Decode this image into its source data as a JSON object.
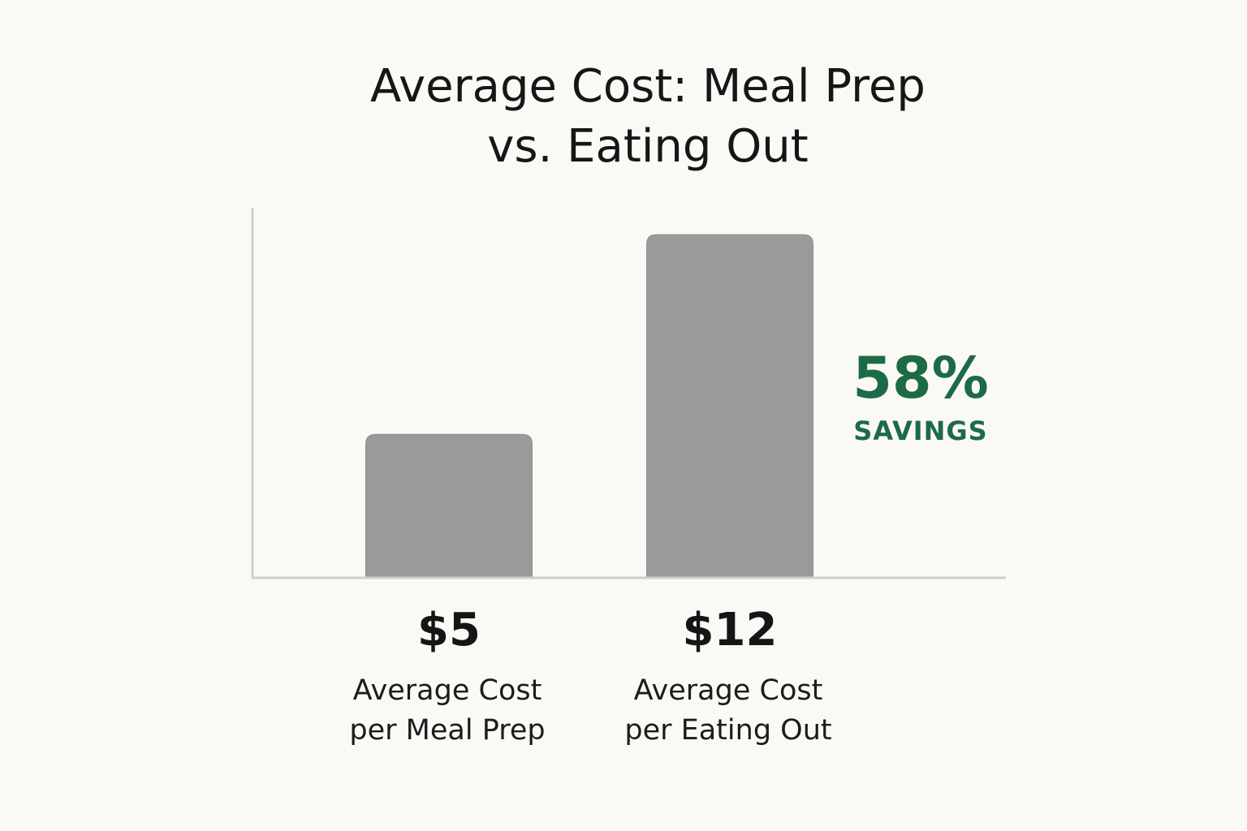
{
  "chart_data": {
    "type": "bar",
    "title_lines": [
      "Average Cost: Meal Prep",
      "vs. Eating Out"
    ],
    "categories": [
      [
        "Average Cost",
        "per Meal Prep"
      ],
      [
        "Average Cost",
        "per Eating Out"
      ]
    ],
    "values": [
      5,
      12
    ],
    "value_labels": [
      "$5",
      "$12"
    ],
    "ylim": [
      0,
      12.8
    ],
    "annotation": {
      "value": "58%",
      "text": "SAVINGS",
      "placement": "right of bars"
    },
    "colors": {
      "bar": "#999a99",
      "axis": "#cfcfcd",
      "accent": "#1c6b47",
      "background": "#fbf9f6"
    }
  }
}
